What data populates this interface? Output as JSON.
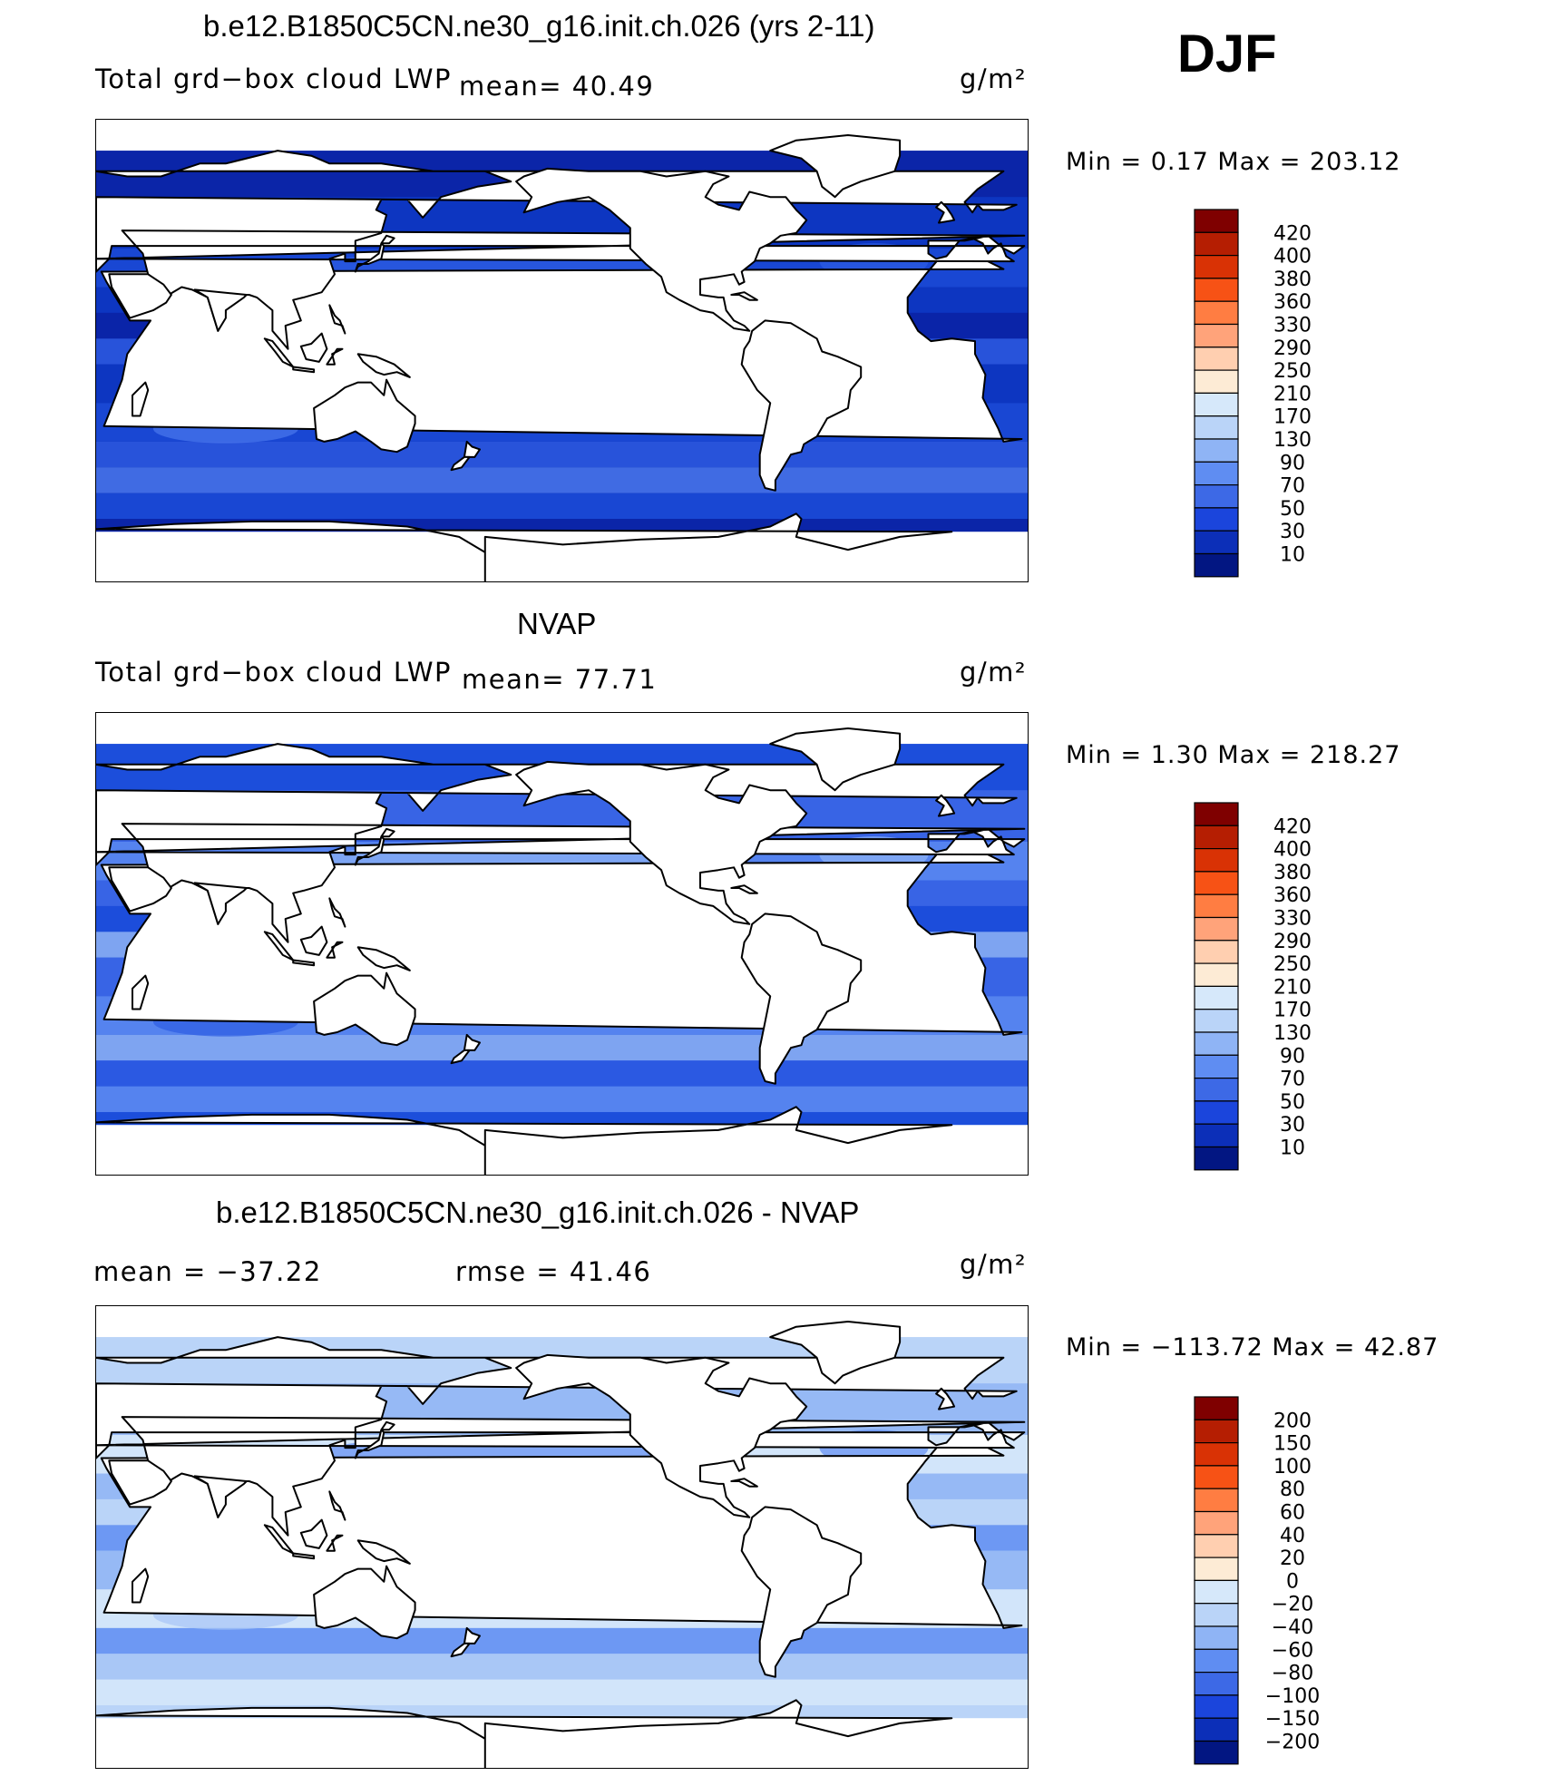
{
  "season": "DJF",
  "panels": [
    {
      "title": "b.e12.B1850C5CN.ne30_g16.init.ch.026 (yrs 2-11)",
      "variable": "Total grd−box cloud LWP",
      "stat_text": "mean=   40.49",
      "units": "g/m²",
      "minmax": "Min  =    0.17  Max  =  203.12",
      "levels": [
        "420",
        "400",
        "380",
        "360",
        "330",
        "290",
        "250",
        "210",
        "170",
        "130",
        "90",
        "70",
        "50",
        "30",
        "10"
      ],
      "colors": [
        "#7f0000",
        "#b51e02",
        "#d93205",
        "#f75215",
        "#ff7d42",
        "#ffa37a",
        "#ffcfb0",
        "#fdebd5",
        "#d6e8fa",
        "#bad4f8",
        "#8fb4f5",
        "#5f8df2",
        "#3d69e6",
        "#1b45dc",
        "#0c2fb8",
        "#021682"
      ],
      "ocean_colors": [
        "#0b25a8",
        "#0e3ac6",
        "#1c4edb",
        "#2e5ce3",
        "#4a78ed"
      ]
    },
    {
      "title": "NVAP",
      "variable": "Total grd−box cloud LWP",
      "stat_text": "mean=   77.71",
      "units": "g/m²",
      "minmax": "Min  =    1.30  Max  =  218.27",
      "levels": [
        "420",
        "400",
        "380",
        "360",
        "330",
        "290",
        "250",
        "210",
        "170",
        "130",
        "90",
        "70",
        "50",
        "30",
        "10"
      ],
      "colors": [
        "#7f0000",
        "#b51e02",
        "#d93205",
        "#f75215",
        "#ff7d42",
        "#ffa37a",
        "#ffcfb0",
        "#fdebd5",
        "#d6e8fa",
        "#bad4f8",
        "#8fb4f5",
        "#5f8df2",
        "#3d69e6",
        "#1b45dc",
        "#0c2fb8",
        "#021682"
      ],
      "ocean_colors": [
        "#1c4edb",
        "#3d69e6",
        "#5f8df2",
        "#8fb4f5",
        "#2e5ce3"
      ]
    },
    {
      "title": "b.e12.B1850C5CN.ne30_g16.init.ch.026 - NVAP",
      "stat_text": "mean  =  −37.22",
      "rmse_text": "rmse  =    41.46",
      "units": "g/m²",
      "minmax": "Min  =  −113.72  Max  =    42.87",
      "levels": [
        "200",
        "150",
        "100",
        "80",
        "60",
        "40",
        "20",
        "0",
        "−20",
        "−40",
        "−60",
        "−80",
        "−100",
        "−150",
        "−200"
      ],
      "colors": [
        "#7f0000",
        "#b51e02",
        "#d93205",
        "#f75215",
        "#ff7d42",
        "#ffa37a",
        "#ffcfb0",
        "#fdebd5",
        "#d6e8fa",
        "#bad4f8",
        "#8fb4f5",
        "#5f8df2",
        "#3d69e6",
        "#1b45dc",
        "#0c2fb8",
        "#021682"
      ],
      "ocean_colors": [
        "#bad4f8",
        "#8fb4f5",
        "#d6e8fa",
        "#5f8df2",
        "#a6c4f6"
      ]
    }
  ]
}
